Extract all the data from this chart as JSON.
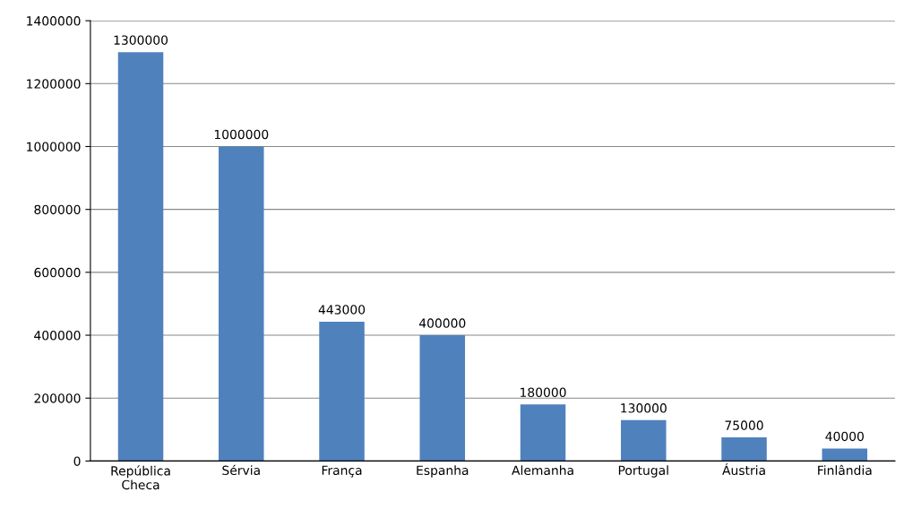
{
  "chart_data": {
    "type": "bar",
    "categories": [
      "República\nCheca",
      "Sérvia",
      "França",
      "Espanha",
      "Alemanha",
      "Portugal",
      "Áustria",
      "Finlândia"
    ],
    "values": [
      1300000,
      1000000,
      443000,
      400000,
      180000,
      130000,
      75000,
      40000
    ],
    "color": "#4f81bd",
    "ylim": [
      0,
      1400000
    ],
    "yticks": [
      0,
      200000,
      400000,
      600000,
      800000,
      1000000,
      1200000,
      1400000
    ],
    "grid": "y",
    "data_labels": true,
    "legend": false
  }
}
